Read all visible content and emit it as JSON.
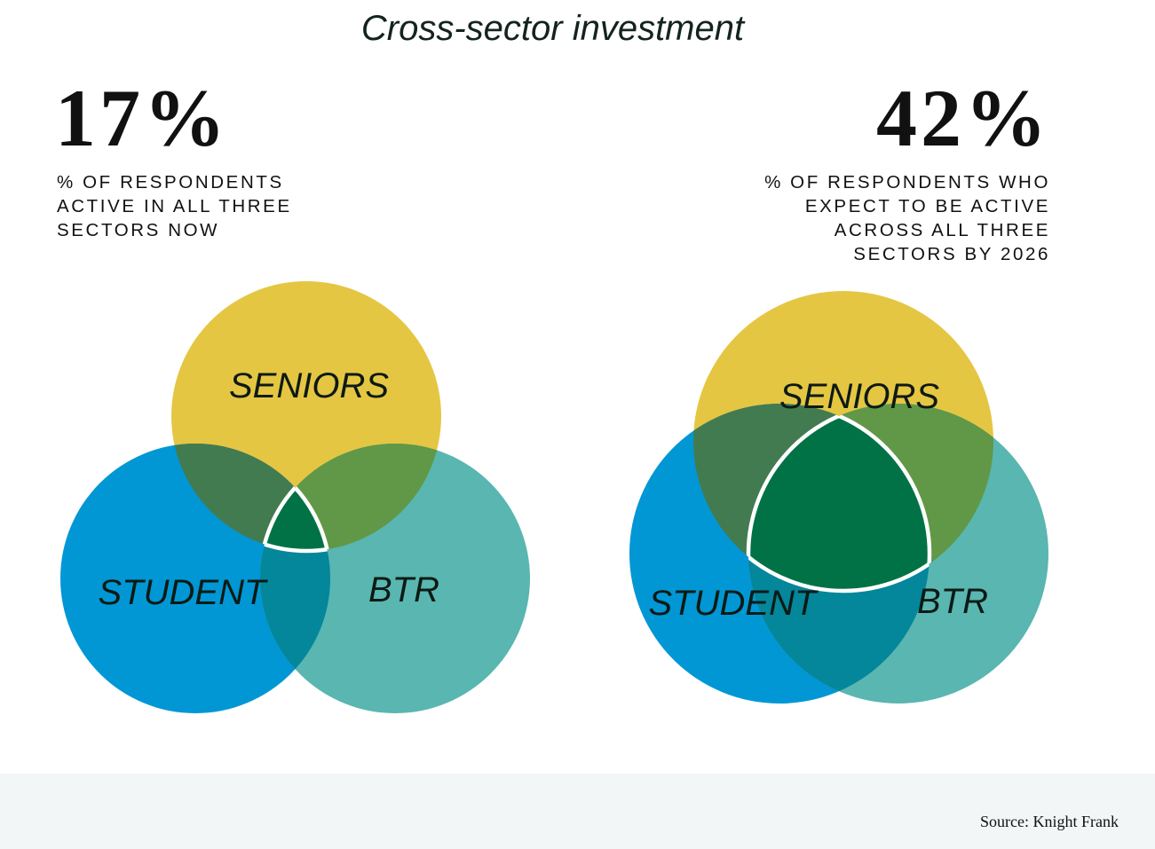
{
  "title": "Cross-sector investment",
  "left": {
    "stat": "17%",
    "caption": [
      "% of respondents",
      "active in all three",
      "sectors now"
    ],
    "labels": {
      "seniors": "SENIORS",
      "student": "STUDENT",
      "btr": "BTR"
    }
  },
  "right": {
    "stat": "42%",
    "caption": [
      "% of respondents who",
      "expect to be active",
      "across all three",
      "sectors by 2026"
    ],
    "labels": {
      "seniors": "SENIORS",
      "student": "STUDENT",
      "btr": "BTR"
    }
  },
  "colors": {
    "seniors": "#E5C643",
    "student": "#0197D5",
    "btr": "#59B6B1",
    "seniors_student": "#437B50",
    "seniors_btr": "#619847",
    "student_btr": "#04869B",
    "all_three": "#007246"
  },
  "footer": {
    "source": "Source: Knight Frank"
  }
}
